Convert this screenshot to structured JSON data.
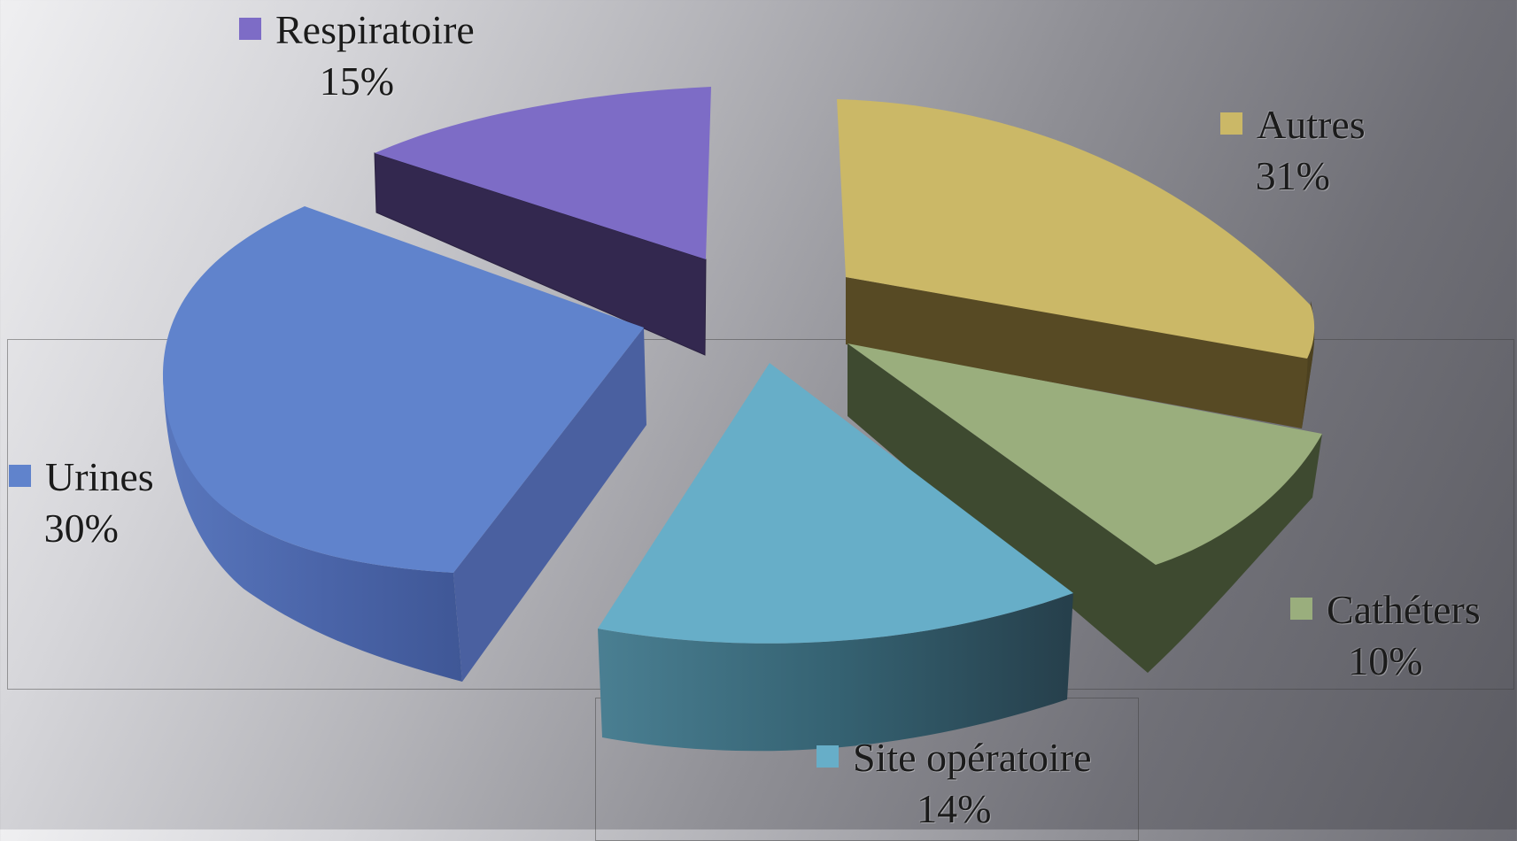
{
  "chart_data": {
    "type": "pie",
    "title": "",
    "legend": "labels on slices",
    "slices": [
      {
        "label": "Respiratoire",
        "value": 15,
        "value_label": "15%",
        "color": "#7d6cc6",
        "side_color": "#33284f"
      },
      {
        "label": "Autres",
        "value": 31,
        "value_label": "31%",
        "color": "#cbb867",
        "side_color": "#574a24"
      },
      {
        "label": "Cathéters",
        "value": 10,
        "value_label": "10%",
        "color": "#9aae7d",
        "side_color": "#3e4a30"
      },
      {
        "label": "Site opératoire",
        "value": 14,
        "value_label": "14%",
        "color": "#67aec8",
        "side_color": "#2f5d6e"
      },
      {
        "label": "Urines",
        "value": 30,
        "value_label": "30%",
        "color": "#6083cc",
        "side_color": "#4960a0"
      }
    ]
  }
}
